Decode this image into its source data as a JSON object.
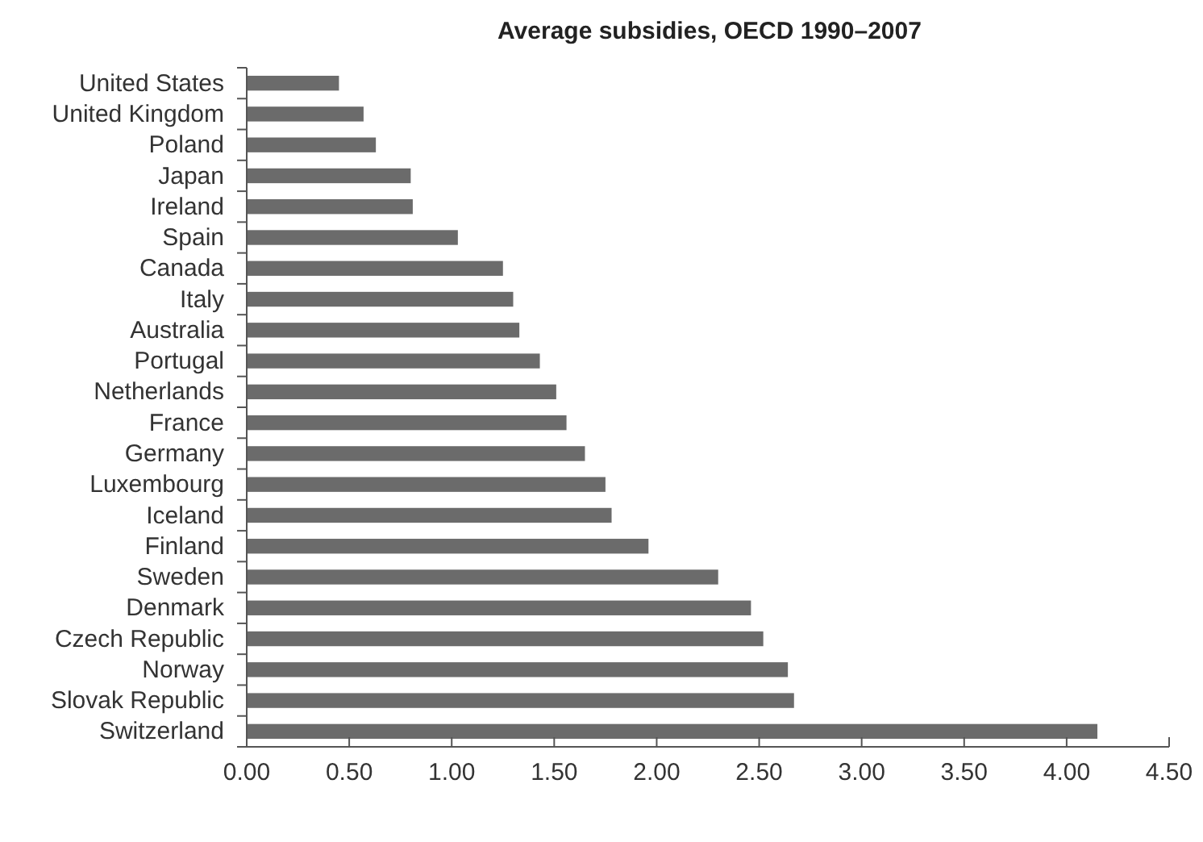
{
  "chart_data": {
    "type": "bar",
    "orientation": "horizontal",
    "title": "Average subsidies, OECD 1990–2007",
    "categories": [
      "United States",
      "United Kingdom",
      "Poland",
      "Japan",
      "Ireland",
      "Spain",
      "Canada",
      "Italy",
      "Australia",
      "Portugal",
      "Netherlands",
      "France",
      "Germany",
      "Luxembourg",
      "Iceland",
      "Finland",
      "Sweden",
      "Denmark",
      "Czech Republic",
      "Norway",
      "Slovak Republic",
      "Switzerland"
    ],
    "values": [
      0.45,
      0.57,
      0.63,
      0.8,
      0.81,
      1.03,
      1.25,
      1.3,
      1.33,
      1.43,
      1.51,
      1.56,
      1.65,
      1.75,
      1.78,
      1.96,
      2.3,
      2.46,
      2.52,
      2.64,
      2.67,
      4.15
    ],
    "color": "#6b6b6b",
    "xlim": [
      0,
      4.5
    ],
    "xticks": [
      {
        "value": 0,
        "label": "0.00"
      },
      {
        "value": 0.5,
        "label": "0.50"
      },
      {
        "value": 1,
        "label": "1.00"
      },
      {
        "value": 1.5,
        "label": "1.50"
      },
      {
        "value": 2,
        "label": "2.00"
      },
      {
        "value": 2.5,
        "label": "2.50"
      },
      {
        "value": 3,
        "label": "3.00"
      },
      {
        "value": 3.5,
        "label": "3.50"
      },
      {
        "value": 4,
        "label": "4.00"
      },
      {
        "value": 4.5,
        "label": "4.50"
      }
    ],
    "grid": false
  }
}
